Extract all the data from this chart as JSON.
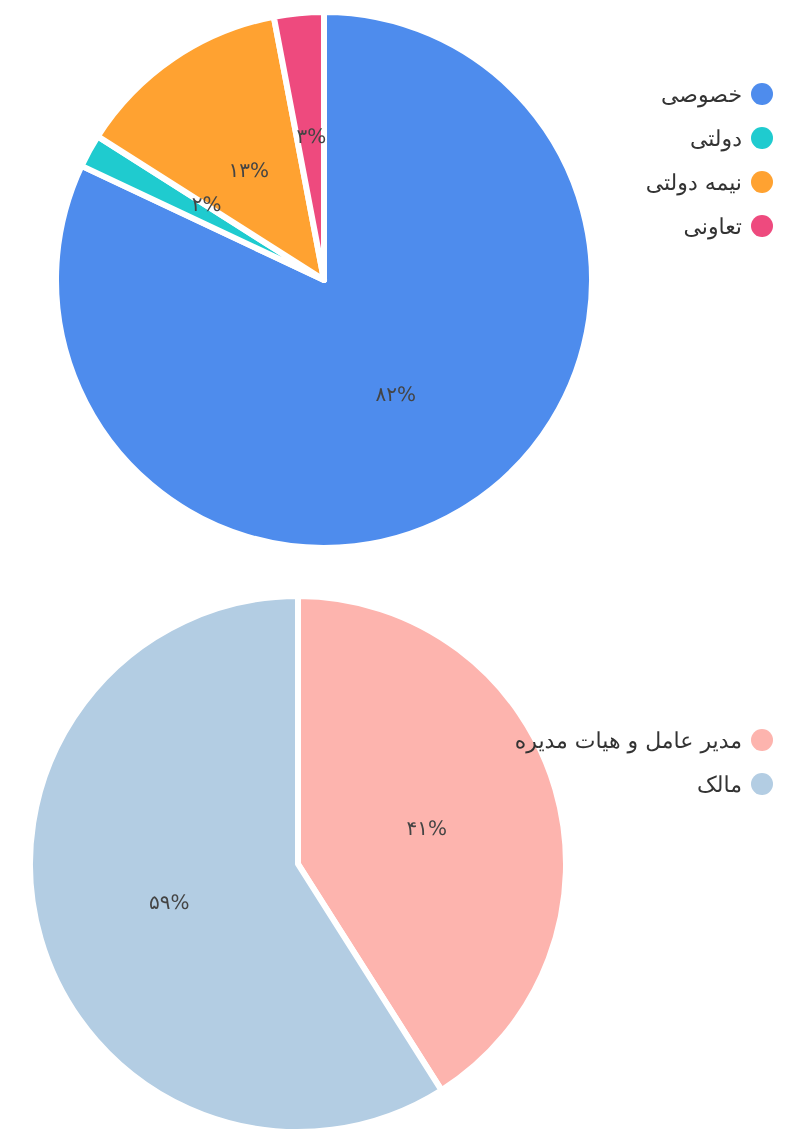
{
  "chart_data": [
    {
      "type": "pie",
      "categories": [
        "خصوصی",
        "دولتی",
        "نیمه دولتی",
        "تعاونی"
      ],
      "values": [
        82,
        2,
        13,
        3
      ],
      "colors": [
        "#4e8ced",
        "#1fcbcf",
        "#ffa231",
        "#ee4a7e"
      ],
      "value_labels": [
        "۸۲%",
        "۲%",
        "۱۳%",
        "۳%"
      ],
      "legend": "right"
    },
    {
      "type": "pie",
      "categories": [
        "مدیر عامل و هیات مدیره",
        "مالک"
      ],
      "values": [
        41,
        59
      ],
      "colors": [
        "#fdb4ae",
        "#b3cde3"
      ],
      "value_labels": [
        "۴۱%",
        "۵۹%"
      ],
      "legend": "right"
    }
  ]
}
